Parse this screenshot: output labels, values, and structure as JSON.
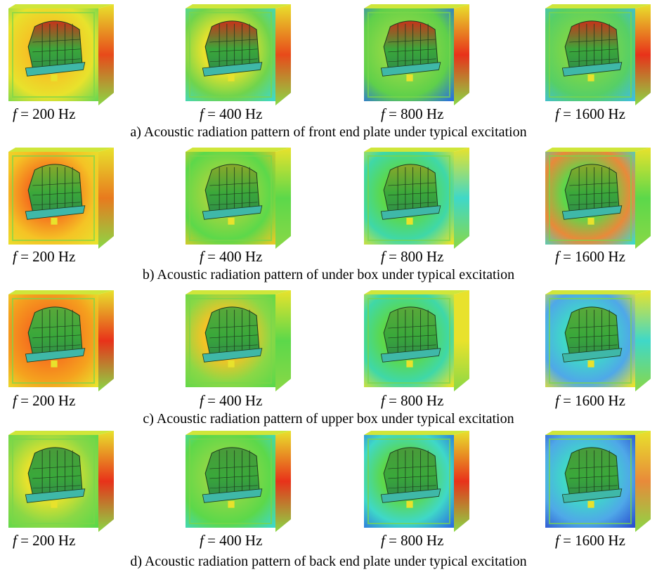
{
  "panels": [
    {
      "caption": "a) Acoustic radiation pattern of front end plate under typical excitation",
      "frequencies": [
        {
          "symbol": "f",
          "value": "= 200 Hz"
        },
        {
          "symbol": "f",
          "value": "= 400 Hz"
        },
        {
          "symbol": "f",
          "value": "= 800 Hz"
        },
        {
          "symbol": "f",
          "value": "= 1600 Hz"
        }
      ]
    },
    {
      "caption": "b) Acoustic radiation pattern of under box under typical excitation",
      "frequencies": [
        {
          "symbol": "f",
          "value": "= 200 Hz"
        },
        {
          "symbol": "f",
          "value": "= 400 Hz"
        },
        {
          "symbol": "f",
          "value": "= 800 Hz"
        },
        {
          "symbol": "f",
          "value": "= 1600 Hz"
        }
      ]
    },
    {
      "caption": "c) Acoustic radiation pattern of upper box under typical excitation",
      "frequencies": [
        {
          "symbol": "f",
          "value": "= 200 Hz"
        },
        {
          "symbol": "f",
          "value": "= 400 Hz"
        },
        {
          "symbol": "f",
          "value": "= 800 Hz"
        },
        {
          "symbol": "f",
          "value": "= 1600 Hz"
        }
      ]
    },
    {
      "caption": "d) Acoustic radiation pattern of back end plate under typical excitation",
      "frequencies": [
        {
          "symbol": "f",
          "value": "= 200 Hz"
        },
        {
          "symbol": "f",
          "value": "= 400 Hz"
        },
        {
          "symbol": "f",
          "value": "= 800 Hz"
        },
        {
          "symbol": "f",
          "value": "= 1600 Hz"
        }
      ]
    }
  ],
  "colors": {
    "red": "#e8321a",
    "orange": "#f5a21e",
    "yellow": "#f2ea2a",
    "green": "#5cd84a",
    "cyan": "#3fd8c8",
    "blue": "#2a6fe0",
    "motor_green": "#3aa83a"
  }
}
